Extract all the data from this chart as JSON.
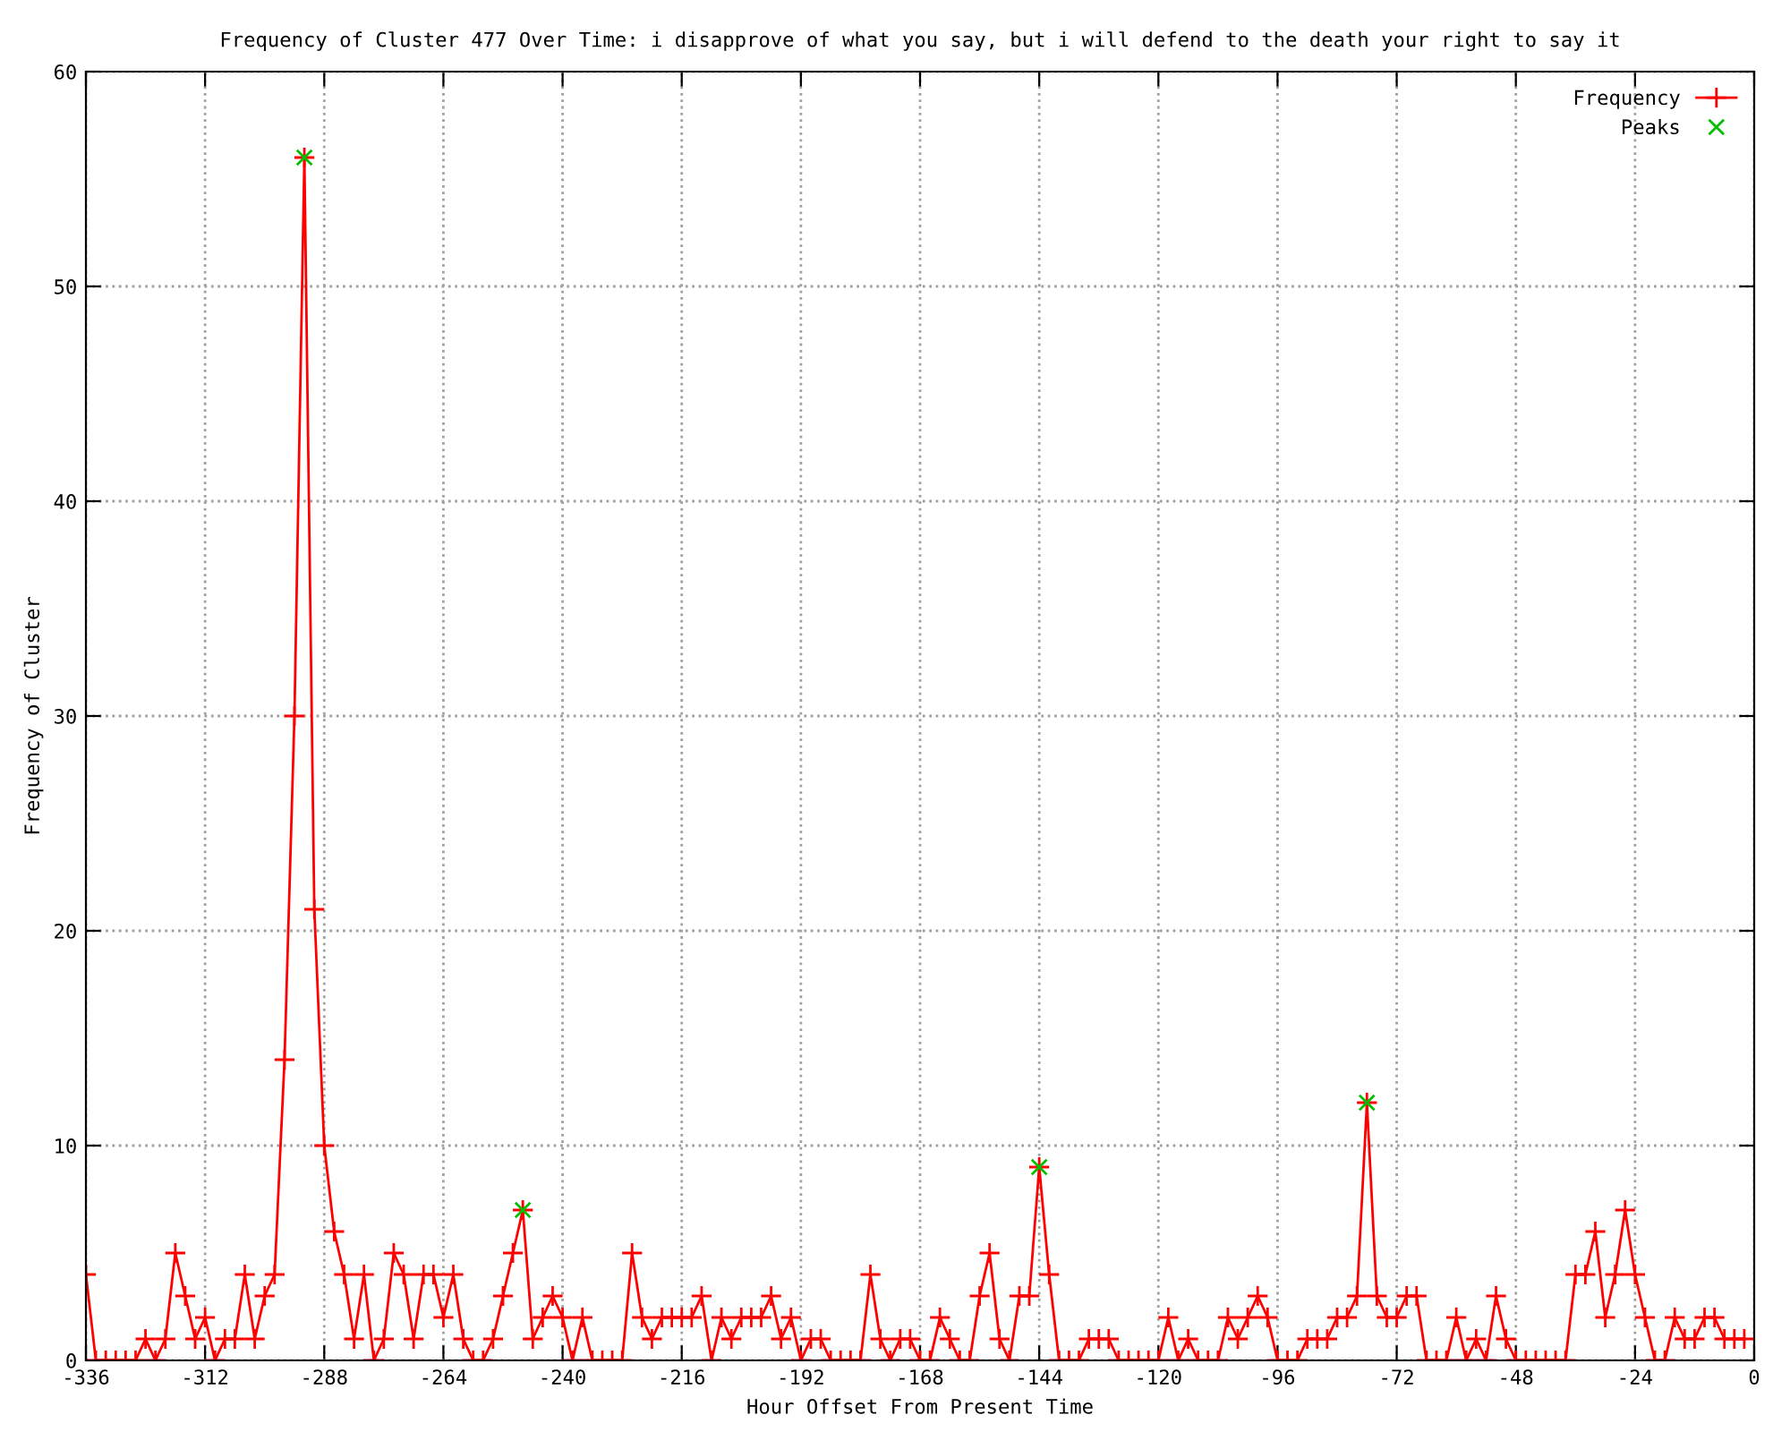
{
  "chart_data": {
    "type": "line",
    "title": "Frequency of Cluster 477 Over Time: i disapprove of what you say, but i will defend to the death your right to say it",
    "xlabel": "Hour Offset From Present Time",
    "ylabel": "Frequency of Cluster",
    "xlim": [
      -336,
      0
    ],
    "ylim": [
      0,
      60
    ],
    "xticks": [
      -336,
      -312,
      -288,
      -264,
      -240,
      -216,
      -192,
      -168,
      -144,
      -120,
      -96,
      -72,
      -48,
      -24,
      0
    ],
    "yticks": [
      0,
      10,
      20,
      30,
      40,
      50,
      60
    ],
    "grid": true,
    "legend": "top right",
    "series": [
      {
        "name": "Frequency",
        "color": "#ff0000",
        "marker": "plus",
        "line_style": "solid",
        "x": [
          -336,
          -334,
          -332,
          -330,
          -328,
          -326,
          -324,
          -322,
          -320,
          -318,
          -316,
          -314,
          -312,
          -310,
          -308,
          -306,
          -304,
          -302,
          -300,
          -298,
          -296,
          -294,
          -292,
          -290,
          -288,
          -286,
          -284,
          -282,
          -280,
          -278,
          -276,
          -274,
          -272,
          -270,
          -268,
          -266,
          -264,
          -262,
          -260,
          -258,
          -256,
          -254,
          -252,
          -250,
          -248,
          -246,
          -244,
          -242,
          -240,
          -238,
          -236,
          -234,
          -232,
          -230,
          -228,
          -226,
          -224,
          -222,
          -220,
          -218,
          -216,
          -214,
          -212,
          -210,
          -208,
          -206,
          -204,
          -202,
          -200,
          -198,
          -196,
          -194,
          -192,
          -190,
          -188,
          -186,
          -184,
          -182,
          -180,
          -178,
          -176,
          -174,
          -172,
          -170,
          -168,
          -166,
          -164,
          -162,
          -160,
          -158,
          -156,
          -154,
          -152,
          -150,
          -148,
          -146,
          -144,
          -142,
          -140,
          -138,
          -136,
          -134,
          -132,
          -130,
          -128,
          -126,
          -124,
          -122,
          -120,
          -118,
          -116,
          -114,
          -112,
          -110,
          -108,
          -106,
          -104,
          -102,
          -100,
          -98,
          -96,
          -94,
          -92,
          -90,
          -88,
          -86,
          -84,
          -82,
          -80,
          -78,
          -76,
          -74,
          -72,
          -70,
          -68,
          -66,
          -64,
          -62,
          -60,
          -58,
          -56,
          -54,
          -52,
          -50,
          -48,
          -46,
          -44,
          -42,
          -40,
          -38,
          -36,
          -34,
          -32,
          -30,
          -28,
          -26,
          -24,
          -22,
          -20,
          -18,
          -16,
          -14,
          -12,
          -10,
          -8,
          -6,
          -4,
          -2
        ],
        "values": [
          4,
          0,
          0,
          0,
          0,
          0,
          1,
          0,
          1,
          5,
          3,
          1,
          2,
          0,
          1,
          1,
          4,
          1,
          3,
          4,
          14,
          30,
          56,
          21,
          10,
          6,
          4,
          1,
          4,
          0,
          1,
          5,
          4,
          1,
          4,
          4,
          2,
          4,
          1,
          0,
          0,
          1,
          3,
          5,
          7,
          1,
          2,
          3,
          2,
          0,
          2,
          0,
          0,
          0,
          0,
          5,
          2,
          1,
          2,
          2,
          2,
          2,
          3,
          0,
          2,
          1,
          2,
          2,
          2,
          3,
          1,
          2,
          0,
          1,
          1,
          0,
          0,
          0,
          0,
          4,
          1,
          0,
          1,
          1,
          0,
          0,
          2,
          1,
          0,
          0,
          3,
          5,
          1,
          0,
          3,
          3,
          9,
          4,
          0,
          0,
          0,
          1,
          1,
          1,
          0,
          0,
          0,
          0,
          0,
          2,
          0,
          1,
          0,
          0,
          0,
          2,
          1,
          2,
          3,
          2,
          0,
          0,
          0,
          1,
          1,
          1,
          2,
          2,
          3,
          12,
          3,
          2,
          2,
          3,
          3,
          0,
          0,
          0,
          2,
          0,
          1,
          0,
          3,
          1,
          0,
          0,
          0,
          0,
          0,
          0,
          4,
          4,
          6,
          2,
          4,
          7,
          4,
          2,
          0,
          0,
          2,
          1,
          1,
          2,
          2,
          1,
          1,
          1
        ]
      },
      {
        "name": "Peaks",
        "color": "#00c000",
        "type": "scatter",
        "marker": "cross",
        "x": [
          -292,
          -248,
          -144,
          -78
        ],
        "values": [
          56,
          7,
          9,
          12
        ]
      }
    ]
  }
}
